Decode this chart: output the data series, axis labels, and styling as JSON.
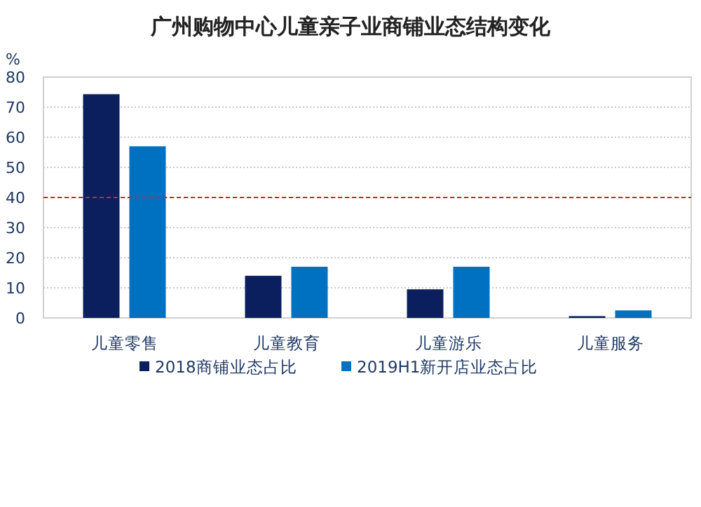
{
  "chart_data": {
    "type": "bar",
    "title": "广州购物中心儿童亲子业商铺业态结构变化",
    "ylabel": "%",
    "categories": [
      "儿童零售",
      "儿童教育",
      "儿童游乐",
      "儿童服务"
    ],
    "series": [
      {
        "name": "2018商铺业态占比",
        "color": "#0b1f5e",
        "values": [
          74.3,
          14,
          9.5,
          0.6
        ]
      },
      {
        "name": "2019H1新开店业态占比",
        "color": "#0070c0",
        "values": [
          57,
          17,
          17,
          2.5
        ]
      }
    ],
    "ylim": [
      0,
      80
    ],
    "yticks": [
      0,
      10,
      20,
      30,
      40,
      50,
      60,
      70,
      80
    ],
    "grid": "y",
    "legend": "bottom",
    "ref_lines": [
      {
        "axis": "y",
        "value": 40,
        "color": "#e02020",
        "line_style": "dashed"
      }
    ]
  }
}
